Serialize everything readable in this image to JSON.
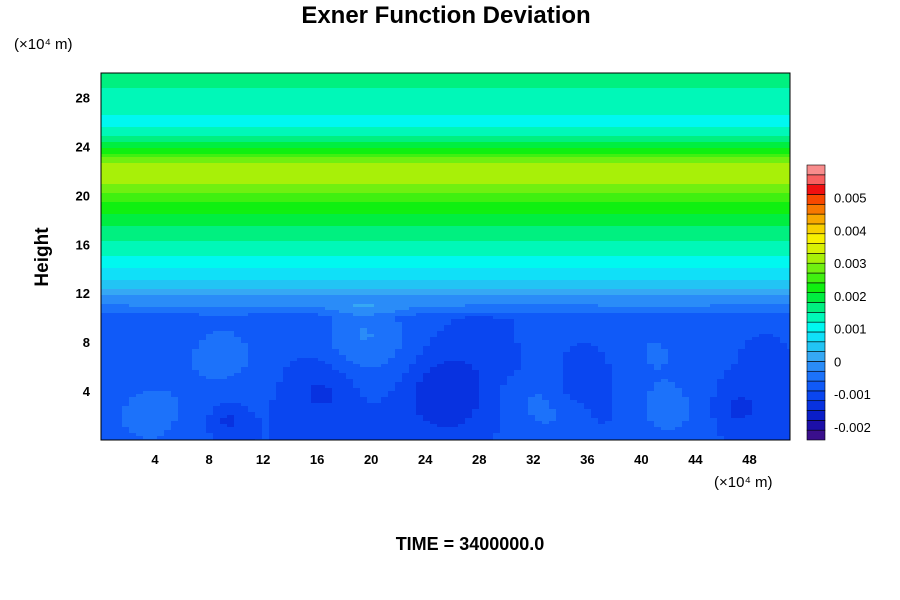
{
  "chart_data": {
    "type": "heatmap",
    "title": "Exner Function Deviation",
    "ylabel": "Height",
    "y_unit": "(×10⁴ m)",
    "x_unit": "(×10⁴ m)",
    "footer": "TIME = 3400000.0",
    "xlim": [
      0,
      51
    ],
    "ylim": [
      0,
      30
    ],
    "x_ticks": [
      4,
      8,
      12,
      16,
      20,
      24,
      28,
      32,
      36,
      40,
      44,
      48
    ],
    "y_ticks": [
      4,
      8,
      12,
      16,
      20,
      24,
      28
    ],
    "colorbar": {
      "min": -0.0024,
      "max": 0.006,
      "step": 0.0003,
      "ticks": [
        "-0.002",
        "-0.001",
        "0",
        "0.001",
        "0.002",
        "0.003",
        "0.004",
        "0.005"
      ],
      "tick_values": [
        -0.002,
        -0.001,
        0,
        0.001,
        0.002,
        0.003,
        0.004,
        0.005
      ]
    },
    "vertical_profile": [
      {
        "y": 0,
        "v": -0.0009
      },
      {
        "y": 10,
        "v": -0.0009
      },
      {
        "y": 10.3,
        "v": -0.0007
      },
      {
        "y": 11,
        "v": -0.0003
      },
      {
        "y": 12,
        "v": 0.0001
      },
      {
        "y": 13,
        "v": 0.0006
      },
      {
        "y": 15,
        "v": 0.0012
      },
      {
        "y": 18,
        "v": 0.0019
      },
      {
        "y": 20,
        "v": 0.0026
      },
      {
        "y": 21,
        "v": 0.003
      },
      {
        "y": 22,
        "v": 0.0033
      },
      {
        "y": 23,
        "v": 0.0028
      },
      {
        "y": 24,
        "v": 0.002
      },
      {
        "y": 25,
        "v": 0.0014
      },
      {
        "y": 26,
        "v": 0.0011
      },
      {
        "y": 28,
        "v": 0.0014
      },
      {
        "y": 30,
        "v": 0.0017
      }
    ],
    "anomalies": [
      {
        "x": 25.5,
        "y": 4,
        "r": 3.6,
        "a": -0.0006
      },
      {
        "x": 16.5,
        "y": 4,
        "r": 2.6,
        "a": -0.0004
      },
      {
        "x": 35.3,
        "y": 4.5,
        "r": 2.2,
        "a": -0.0004
      },
      {
        "x": 47.2,
        "y": 2.6,
        "r": 1.8,
        "a": -0.0004
      },
      {
        "x": 9.4,
        "y": 1.6,
        "r": 1.3,
        "a": -0.0004
      },
      {
        "x": 30.2,
        "y": 6.5,
        "r": 0.9,
        "a": -0.0003
      },
      {
        "x": 37.2,
        "y": 2.3,
        "r": 0.8,
        "a": -0.0003
      },
      {
        "x": 48.7,
        "y": 6.5,
        "r": 0.7,
        "a": -0.0003
      },
      {
        "x": 20.5,
        "y": 7.5,
        "r": 4.0,
        "a": 0.0004
      },
      {
        "x": 9,
        "y": 7,
        "r": 3.5,
        "a": 0.0004
      },
      {
        "x": 3.5,
        "y": 2,
        "r": 3.5,
        "a": 0.0004
      },
      {
        "x": 33,
        "y": 3,
        "r": 3.5,
        "a": 0.0004
      },
      {
        "x": 42,
        "y": 2.5,
        "r": 3.0,
        "a": 0.0004
      },
      {
        "x": 41,
        "y": 7.5,
        "r": 2.5,
        "a": 0.0003
      },
      {
        "x": 19,
        "y": 9,
        "r": 2.5,
        "a": 0.0003
      }
    ]
  }
}
